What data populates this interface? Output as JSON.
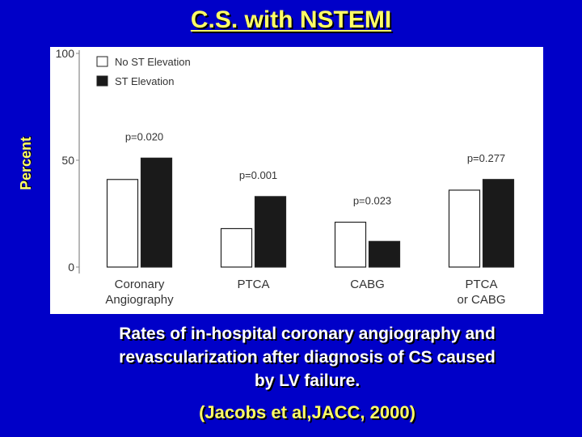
{
  "slide": {
    "title": "C.S. with NSTEMI",
    "caption_lines": [
      "Rates of in-hospital coronary angiography and",
      "revascularization after diagnosis of CS caused",
      "by LV failure."
    ],
    "citation": "(Jacobs et al,JACC, 2000)"
  },
  "chart_data": {
    "type": "bar",
    "categories": [
      "Coronary\nAngiography",
      "PTCA",
      "CABG",
      "PTCA\nor CABG"
    ],
    "series": [
      {
        "name": "No ST Elevation",
        "values": [
          41,
          18,
          21,
          36
        ],
        "color": "#ffffff"
      },
      {
        "name": "ST Elevation",
        "values": [
          51,
          33,
          12,
          41
        ],
        "color": "#1a1a1a"
      }
    ],
    "p_values": [
      "p=0.020",
      "p=0.001",
      "p=0.023",
      "p=0.277"
    ],
    "ylabel": "Percent",
    "ylim": [
      0,
      100
    ],
    "yticks": [
      "0",
      "50",
      "100"
    ],
    "legend_position": "top-left",
    "grid": false
  }
}
